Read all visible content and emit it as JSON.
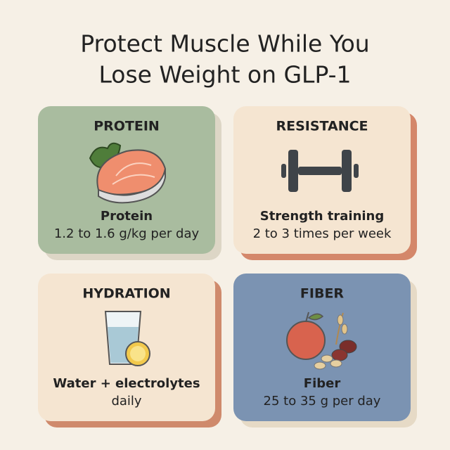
{
  "header": {
    "title_lines": [
      "Protect Muscle While You",
      "Lose Weight on GLP-1"
    ]
  },
  "cards": [
    {
      "heading": "PROTEIN",
      "label": "Protein",
      "detail": "1.2 to 1.6 g/kg per day"
    },
    {
      "heading": "RESISTANCE",
      "label": "Strength training",
      "detail": "2 to 3 times per week"
    },
    {
      "heading": "HYDRATION",
      "label": "Water + electrolytes",
      "detail": "daily"
    },
    {
      "heading": "FIBER",
      "label": "Fiber",
      "detail": "25 to 35 g per day"
    }
  ]
}
